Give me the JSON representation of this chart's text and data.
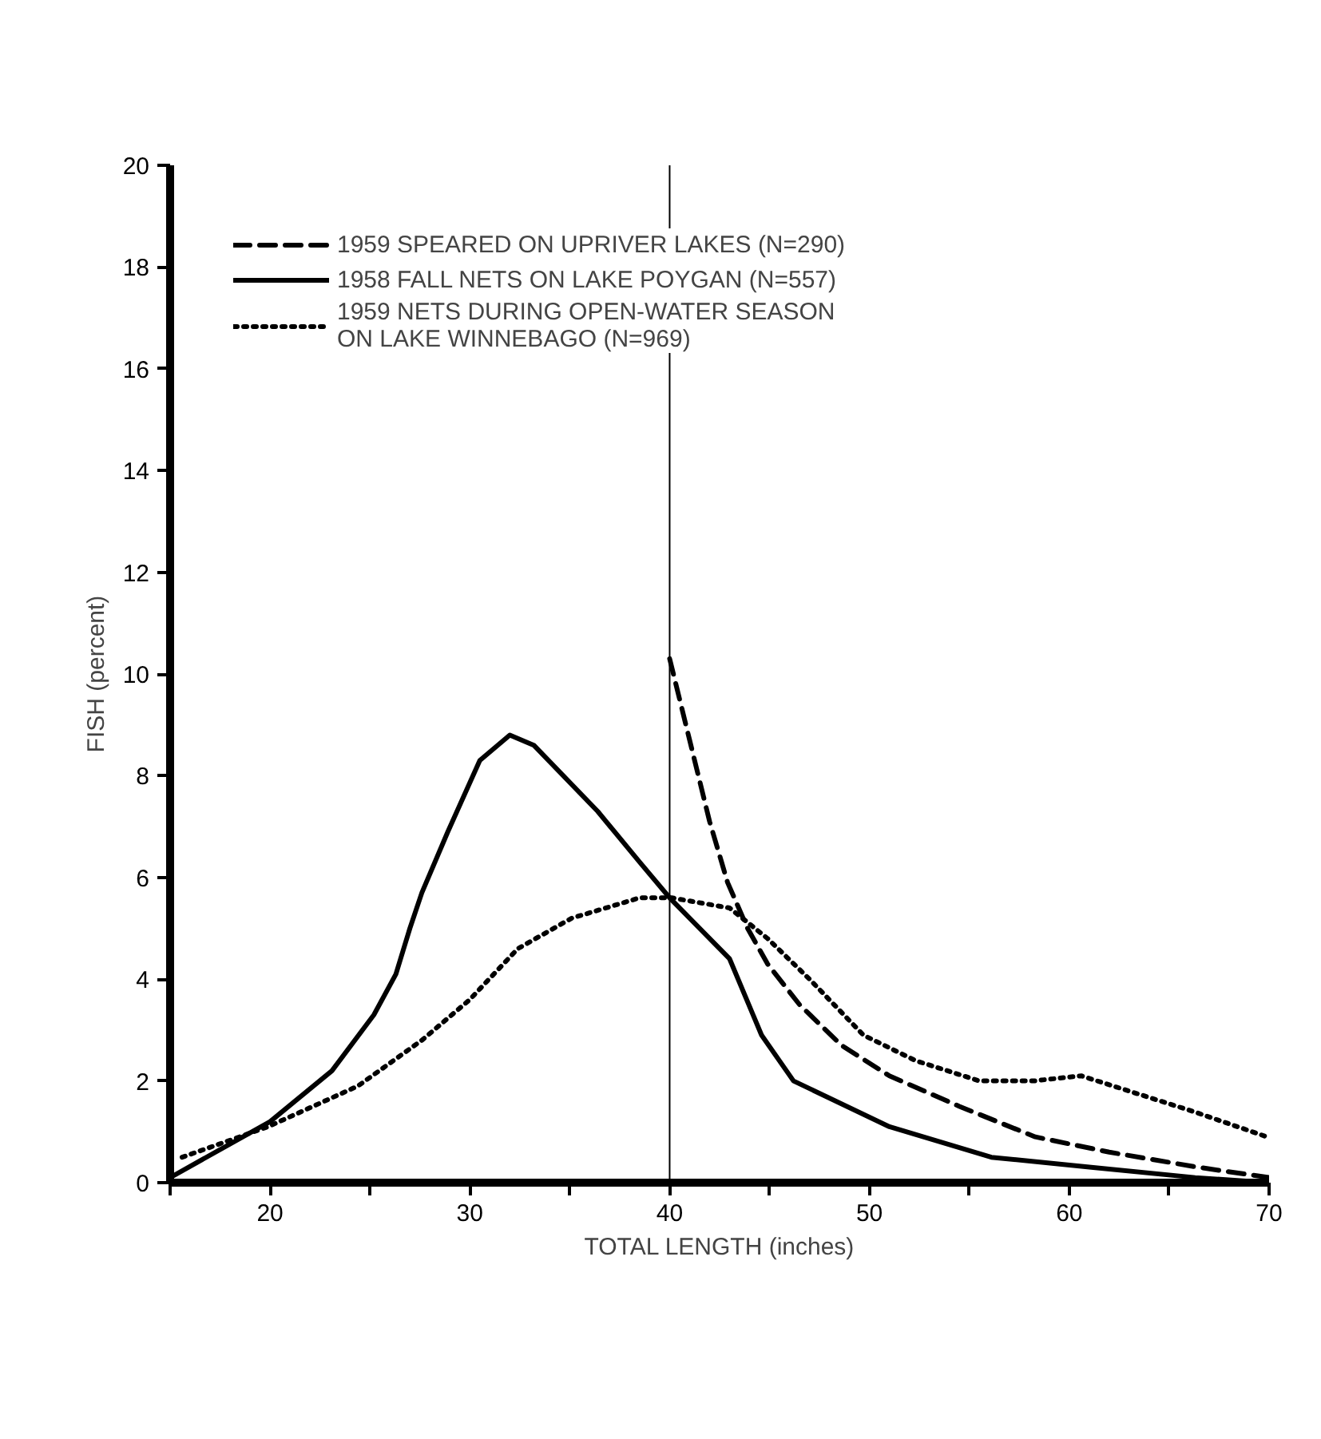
{
  "chart_data": {
    "type": "line",
    "xlabel": "TOTAL LENGTH (inches)",
    "ylabel": "FISH (percent)",
    "xlim": [
      15,
      70
    ],
    "ylim": [
      0,
      20
    ],
    "xticks": [
      {
        "value": 15,
        "label": null
      },
      20,
      {
        "value": 25,
        "label": null
      },
      30,
      {
        "value": 35,
        "label": null
      },
      40,
      {
        "value": 45,
        "label": null
      },
      50,
      {
        "value": 55,
        "label": null
      },
      60,
      {
        "value": 65,
        "label": null
      },
      70
    ],
    "yticks": [
      0,
      2,
      4,
      6,
      8,
      10,
      12,
      14,
      16,
      18,
      20
    ],
    "grid": false,
    "legend": "top left",
    "ref_lines": [
      {
        "axis": "x",
        "value": 40,
        "color": "#000000",
        "line_style": "solid"
      }
    ],
    "series": [
      {
        "name": "1959 SPEARED ON UPRIVER LAKES (N=290)",
        "color": "#000000",
        "line_style": "dashed",
        "x": [
          40,
          41,
          42,
          42.9,
          43.9,
          44.9,
          46.5,
          48.6,
          51,
          54.5,
          58.3,
          62,
          66.5,
          70
        ],
        "values": [
          10.3,
          8.7,
          7.1,
          5.9,
          5.0,
          4.3,
          3.5,
          2.7,
          2.1,
          1.5,
          0.9,
          0.6,
          0.3,
          0.1
        ]
      },
      {
        "name": "1958 FALL NETS ON LAKE POYGAN (N=557)",
        "color": "#000000",
        "line_style": "solid",
        "x": [
          15,
          20,
          23.1,
          25.2,
          26.3,
          27,
          27.6,
          28.9,
          30.5,
          32,
          33.2,
          36.4,
          38.5,
          40,
          43,
          44.6,
          46.2,
          47.8,
          51,
          56.1,
          61.2,
          66.3,
          70
        ],
        "values": [
          0.1,
          1.2,
          2.2,
          3.3,
          4.1,
          5.0,
          5.7,
          6.9,
          8.3,
          8.8,
          8.6,
          7.3,
          6.3,
          5.6,
          4.4,
          2.9,
          2.0,
          1.7,
          1.1,
          0.5,
          0.3,
          0.1,
          0.0
        ]
      },
      {
        "name": "1959 NETS DURING OPEN-WATER SEASON\nON LAKE WINNEBAGO (N=969)",
        "color": "#000000",
        "line_style": "dotted",
        "x": [
          15.6,
          19.9,
          24.4,
          27.6,
          30,
          32.4,
          35.1,
          38.5,
          40.1,
          43,
          44.9,
          47,
          49.7,
          52.3,
          55.5,
          58.2,
          60.6,
          63,
          66.2,
          69.9
        ],
        "values": [
          0.5,
          1.1,
          1.9,
          2.8,
          3.6,
          4.6,
          5.2,
          5.6,
          5.6,
          5.4,
          4.8,
          4.0,
          2.9,
          2.4,
          2.0,
          2.0,
          2.1,
          1.8,
          1.4,
          0.9
        ]
      }
    ]
  }
}
